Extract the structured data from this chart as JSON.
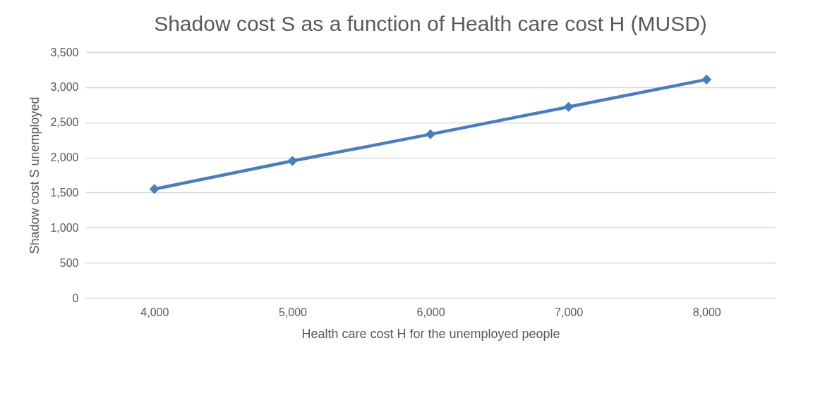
{
  "chart_data": {
    "type": "line",
    "title": "Shadow cost S as a function of Health care cost H (MUSD)",
    "xlabel": "Health care cost H for the unemployed people",
    "ylabel": "Shadow cost S unemployed",
    "categories": [
      "4,000",
      "5,000",
      "6,000",
      "7,000",
      "8,000"
    ],
    "series": [
      {
        "color": "#4a7ebb",
        "values": [
          1550,
          1950,
          2330,
          2720,
          3110
        ]
      }
    ],
    "ylim": [
      0,
      3500
    ],
    "yticks": [
      {
        "value": 0,
        "label": "0"
      },
      {
        "value": 500,
        "label": "500"
      },
      {
        "value": 1000,
        "label": "1,000"
      },
      {
        "value": 1500,
        "label": "1,500"
      },
      {
        "value": 2000,
        "label": "2,000"
      },
      {
        "value": 2500,
        "label": "2,500"
      },
      {
        "value": 3000,
        "label": "3,000"
      },
      {
        "value": 3500,
        "label": "3,500"
      }
    ],
    "grid": "y",
    "legend": false,
    "marker": "diamond",
    "line_style": "solid"
  }
}
